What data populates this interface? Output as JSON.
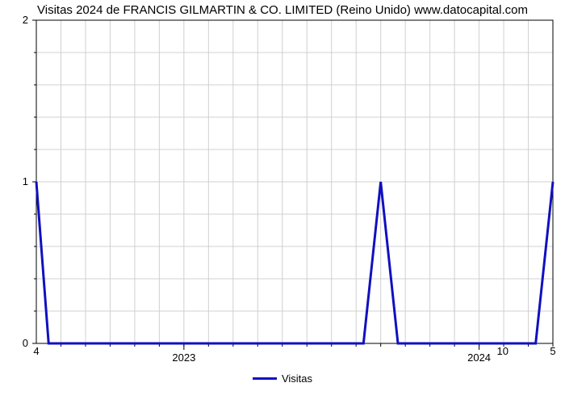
{
  "chart": {
    "type": "line",
    "title": "Visitas 2024 de FRANCIS GILMARTIN & CO. LIMITED (Reino Unido) www.datocapital.com",
    "title_fontsize": 15,
    "background_color": "#ffffff",
    "grid_color": "#d0d0d0",
    "axis_font_size": 13,
    "x": {
      "min": 0,
      "max": 21,
      "grid_idx": [
        1,
        2,
        3,
        4,
        5,
        6,
        7,
        8,
        9,
        10,
        11,
        12,
        13,
        14,
        15,
        16,
        17,
        18,
        19,
        20,
        21
      ],
      "minor_tick_idx": [
        1,
        2,
        3,
        4,
        5,
        6,
        7,
        8,
        9,
        10,
        11,
        12,
        13,
        14,
        15,
        16,
        17,
        18,
        19,
        20,
        21
      ],
      "major_ticks": [
        {
          "idx": 6,
          "label": "2023"
        },
        {
          "idx": 18,
          "label": "2024"
        }
      ],
      "edge_left": "4",
      "edge_right": "5"
    },
    "y": {
      "min": 0,
      "max": 2,
      "major_ticks": [
        {
          "v": 0,
          "label": "0"
        },
        {
          "v": 1,
          "label": "1"
        },
        {
          "v": 2,
          "label": "2"
        }
      ],
      "left_minor_count": 4,
      "right_tick_1": "10"
    },
    "series": {
      "name": "Visitas",
      "color": "#1010c0",
      "line_width": 3,
      "points": [
        {
          "x": 0.0,
          "y": 1.0
        },
        {
          "x": 0.5,
          "y": 0.0
        },
        {
          "x": 13.3,
          "y": 0.0
        },
        {
          "x": 14.0,
          "y": 1.0
        },
        {
          "x": 14.7,
          "y": 0.0
        },
        {
          "x": 20.3,
          "y": 0.0
        },
        {
          "x": 21.0,
          "y": 1.0
        }
      ]
    },
    "legend": {
      "label": "Visitas",
      "swatch_color": "#1010c0"
    }
  }
}
